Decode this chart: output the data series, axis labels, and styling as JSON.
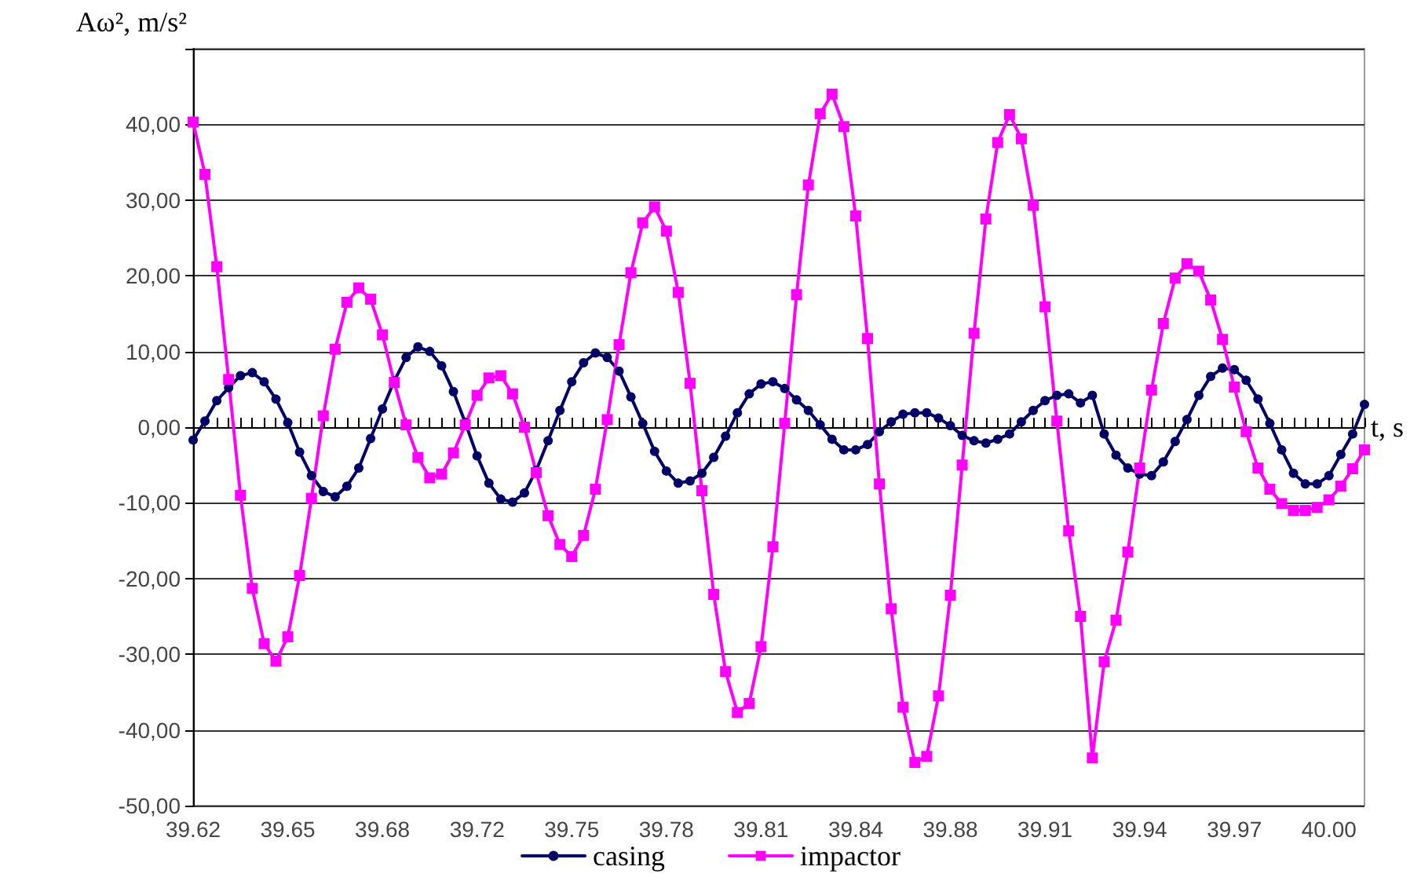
{
  "chart_data": {
    "type": "line",
    "xlabel": "t, s",
    "ylabel": "Aω², m/s²",
    "categories": [
      "39.62",
      null,
      null,
      null,
      null,
      null,
      null,
      null,
      "39.65",
      null,
      null,
      null,
      null,
      null,
      null,
      null,
      "39.68",
      null,
      null,
      null,
      null,
      null,
      null,
      null,
      "39.72",
      null,
      null,
      null,
      null,
      null,
      null,
      null,
      "39.75",
      null,
      null,
      null,
      null,
      null,
      null,
      null,
      "39.78",
      null,
      null,
      null,
      null,
      null,
      null,
      null,
      "39.81",
      null,
      null,
      null,
      null,
      null,
      null,
      null,
      "39.84",
      null,
      null,
      null,
      null,
      null,
      null,
      null,
      "39.88",
      null,
      null,
      null,
      null,
      null,
      null,
      null,
      "39.91",
      null,
      null,
      null,
      null,
      null,
      null,
      null,
      "39.94",
      null,
      null,
      null,
      null,
      null,
      null,
      null,
      "39.97",
      null,
      null,
      null,
      null,
      null,
      null,
      null,
      "40.00",
      null,
      null,
      null
    ],
    "series": [
      {
        "name": "casing",
        "color": "#000066",
        "marker": "circle",
        "values": [
          -1.7,
          0.8,
          3.5,
          5.2,
          6.8,
          7.2,
          6.0,
          3.7,
          0.6,
          -3.3,
          -6.4,
          -8.5,
          -9.2,
          -7.8,
          -5.4,
          -1.5,
          2.4,
          6.1,
          9.2,
          10.6,
          10.0,
          8.1,
          4.7,
          0.6,
          -3.8,
          -7.4,
          -9.5,
          -9.9,
          -8.7,
          -5.7,
          -1.8,
          2.2,
          6.0,
          8.5,
          9.8,
          9.2,
          7.4,
          4.0,
          0.5,
          -3.2,
          -5.8,
          -7.4,
          -7.1,
          -6.1,
          -4.0,
          -1.2,
          1.9,
          4.4,
          5.7,
          6.0,
          5.1,
          3.6,
          2.2,
          0.3,
          -1.6,
          -3.0,
          -3.0,
          -2.3,
          -0.6,
          0.7,
          1.7,
          1.9,
          1.9,
          1.2,
          0.2,
          -1.1,
          -1.8,
          -2.1,
          -1.6,
          -0.9,
          0.7,
          2.2,
          3.5,
          4.2,
          4.4,
          3.2,
          4.2,
          -0.9,
          -3.7,
          -5.4,
          -6.2,
          -6.4,
          -4.6,
          -1.9,
          1.0,
          4.2,
          6.7,
          7.8,
          7.6,
          6.2,
          3.7,
          0.5,
          -3.0,
          -6.1,
          -7.5,
          -7.5,
          -6.4,
          -3.6,
          -0.9,
          3.0
        ]
      },
      {
        "name": "impactor",
        "color": "#ff00ff",
        "marker": "square",
        "values": [
          40.3,
          33.4,
          21.2,
          6.3,
          -9.0,
          -21.3,
          -28.6,
          -30.9,
          -27.7,
          -19.6,
          -9.4,
          1.5,
          10.3,
          16.5,
          18.4,
          16.9,
          12.2,
          5.9,
          0.3,
          -4.0,
          -6.7,
          -6.2,
          -3.4,
          0.3,
          4.2,
          6.5,
          6.8,
          4.4,
          0.0,
          -6.0,
          -11.7,
          -15.5,
          -17.1,
          -14.3,
          -8.2,
          1.0,
          10.9,
          20.4,
          27.0,
          29.1,
          25.9,
          17.8,
          5.8,
          -8.4,
          -22.1,
          -32.3,
          -37.7,
          -36.5,
          -29.0,
          -15.8,
          0.5,
          17.5,
          32.0,
          41.4,
          44.0,
          39.7,
          27.9,
          11.7,
          -7.5,
          -24.0,
          -37.0,
          -44.3,
          -43.5,
          -35.5,
          -22.2,
          -5.0,
          12.4,
          27.5,
          37.6,
          41.3,
          38.1,
          29.3,
          15.9,
          0.8,
          -13.7,
          -25.0,
          -43.7,
          -31.0,
          -25.5,
          -16.5,
          -5.4,
          4.9,
          13.7,
          19.7,
          21.6,
          20.6,
          16.8,
          11.6,
          5.3,
          -0.6,
          -5.4,
          -8.2,
          -10.1,
          -11.0,
          -11.0,
          -10.6,
          -9.6,
          -7.8,
          -5.5,
          -3.0
        ]
      }
    ],
    "ylim": [
      -50,
      50
    ],
    "yticks": [
      {
        "value": -50,
        "label": "-50,00"
      },
      {
        "value": -40,
        "label": "-40,00"
      },
      {
        "value": -30,
        "label": "-30,00"
      },
      {
        "value": -20,
        "label": "-20,00"
      },
      {
        "value": -10,
        "label": "-10,00"
      },
      {
        "value": 0,
        "label": "0,00"
      },
      {
        "value": 10,
        "label": "10,00"
      },
      {
        "value": 20,
        "label": "20,00"
      },
      {
        "value": 30,
        "label": "30,00"
      },
      {
        "value": 40,
        "label": "40,00"
      },
      {
        "value": 50,
        "label": null
      }
    ],
    "grid": "y",
    "legend": "bottom",
    "line_style": "solid"
  }
}
